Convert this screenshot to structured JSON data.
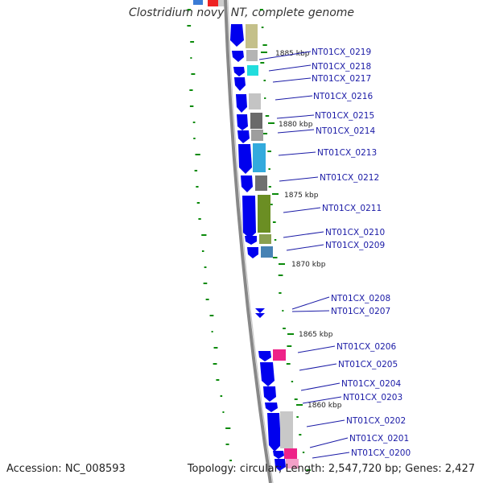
{
  "title": "Clostridium novyi NT, complete genome",
  "footer": {
    "accession_label": "Accession:",
    "accession": "NC_008593",
    "topology_label": "Topology:",
    "topology": "circular",
    "length_label": "Length:",
    "length": "2,547,720 bp",
    "genes_label": "Genes:",
    "genes": "2,427"
  },
  "colors": {
    "backbone": "#888888",
    "gene_arrow": "#0000ee",
    "label_text": "#1a1aa6",
    "tick_green": "#0a8a0a"
  },
  "scale_labels": [
    "1885 kbp",
    "1880 kbp",
    "1875 kbp",
    "1870 kbp",
    "1865 kbp",
    "1860 kbp"
  ],
  "gene_labels": [
    "NT01CX_0219",
    "NT01CX_0218",
    "NT01CX_0217",
    "NT01CX_0216",
    "NT01CX_0215",
    "NT01CX_0214",
    "NT01CX_0213",
    "NT01CX_0212",
    "NT01CX_0211",
    "NT01CX_0210",
    "NT01CX_0209",
    "NT01CX_0208",
    "NT01CX_0207",
    "NT01CX_0206",
    "NT01CX_0205",
    "NT01CX_0204",
    "NT01CX_0203",
    "NT01CX_0202",
    "NT01CX_0201",
    "NT01CX_0200"
  ]
}
